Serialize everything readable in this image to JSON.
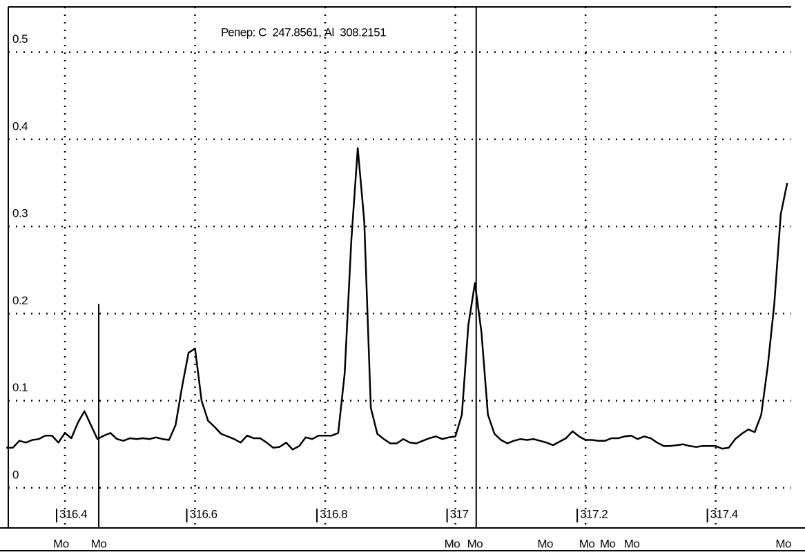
{
  "chart_data": {
    "type": "line",
    "annotation": "Репер: С  247.8561, Al  308.2151",
    "xlim": [
      316.313,
      317.516
    ],
    "ylim": [
      -0.046,
      0.552
    ],
    "xticks": [
      316.4,
      316.6,
      316.8,
      317,
      317.2,
      317.4
    ],
    "yticks": [
      0,
      0.1,
      0.2,
      0.3,
      0.4,
      0.5
    ],
    "grid": true,
    "series": [
      {
        "color": "#000000",
        "x": [
          316.31,
          316.32,
          316.33,
          316.34,
          316.35,
          316.36,
          316.37,
          316.38,
          316.39,
          316.4,
          316.41,
          316.42,
          316.43,
          316.44,
          316.45,
          316.46,
          316.47,
          316.48,
          316.49,
          316.5,
          316.51,
          316.52,
          316.53,
          316.54,
          316.55,
          316.56,
          316.57,
          316.58,
          316.59,
          316.6,
          316.61,
          316.62,
          316.63,
          316.64,
          316.65,
          316.66,
          316.67,
          316.68,
          316.69,
          316.7,
          316.71,
          316.72,
          316.73,
          316.74,
          316.75,
          316.76,
          316.77,
          316.78,
          316.79,
          316.8,
          316.81,
          316.82,
          316.83,
          316.84,
          316.85,
          316.86,
          316.87,
          316.88,
          316.89,
          316.9,
          316.91,
          316.92,
          316.93,
          316.94,
          316.95,
          316.96,
          316.97,
          316.98,
          316.99,
          317.0,
          317.01,
          317.02,
          317.03,
          317.04,
          317.05,
          317.06,
          317.07,
          317.08,
          317.09,
          317.1,
          317.11,
          317.12,
          317.13,
          317.14,
          317.15,
          317.16,
          317.17,
          317.18,
          317.19,
          317.2,
          317.21,
          317.22,
          317.23,
          317.24,
          317.25,
          317.26,
          317.27,
          317.28,
          317.29,
          317.3,
          317.31,
          317.32,
          317.33,
          317.34,
          317.35,
          317.36,
          317.37,
          317.38,
          317.39,
          317.4,
          317.41,
          317.42,
          317.43,
          317.44,
          317.45,
          317.46,
          317.47,
          317.48,
          317.49,
          317.5,
          317.51
        ],
        "values": [
          0.046,
          0.046,
          0.054,
          0.052,
          0.055,
          0.056,
          0.06,
          0.06,
          0.052,
          0.063,
          0.057,
          0.075,
          0.088,
          0.072,
          0.056,
          0.06,
          0.063,
          0.056,
          0.054,
          0.057,
          0.056,
          0.057,
          0.056,
          0.058,
          0.056,
          0.055,
          0.072,
          0.116,
          0.155,
          0.16,
          0.1,
          0.077,
          0.07,
          0.062,
          0.059,
          0.056,
          0.052,
          0.06,
          0.057,
          0.057,
          0.052,
          0.046,
          0.047,
          0.052,
          0.044,
          0.048,
          0.058,
          0.056,
          0.06,
          0.06,
          0.06,
          0.063,
          0.132,
          0.283,
          0.39,
          0.306,
          0.092,
          0.062,
          0.056,
          0.051,
          0.051,
          0.056,
          0.052,
          0.051,
          0.054,
          0.057,
          0.059,
          0.056,
          0.058,
          0.059,
          0.084,
          0.187,
          0.235,
          0.179,
          0.084,
          0.062,
          0.055,
          0.051,
          0.054,
          0.056,
          0.055,
          0.056,
          0.054,
          0.052,
          0.049,
          0.053,
          0.057,
          0.065,
          0.059,
          0.055,
          0.055,
          0.054,
          0.054,
          0.057,
          0.057,
          0.059,
          0.06,
          0.056,
          0.059,
          0.057,
          0.052,
          0.048,
          0.048,
          0.049,
          0.05,
          0.048,
          0.047,
          0.048,
          0.048,
          0.048,
          0.045,
          0.046,
          0.056,
          0.062,
          0.067,
          0.064,
          0.084,
          0.14,
          0.211,
          0.314,
          0.35
        ]
      }
    ],
    "cursors": [
      {
        "x": 316.452,
        "y": 0.211
      },
      {
        "x": 317.032,
        "y": 0.552
      }
    ],
    "markers": [
      {
        "x": 316.394,
        "label": "Mo"
      },
      {
        "x": 316.452,
        "label": "Mo"
      },
      {
        "x": 316.995,
        "label": "Mo"
      },
      {
        "x": 317.03,
        "label": "Mo"
      },
      {
        "x": 317.138,
        "label": "Mo"
      },
      {
        "x": 317.202,
        "label": "Mo"
      },
      {
        "x": 317.234,
        "label": "Mo"
      },
      {
        "x": 317.271,
        "label": "Mo"
      },
      {
        "x": 317.504,
        "label": "Mo"
      }
    ]
  }
}
